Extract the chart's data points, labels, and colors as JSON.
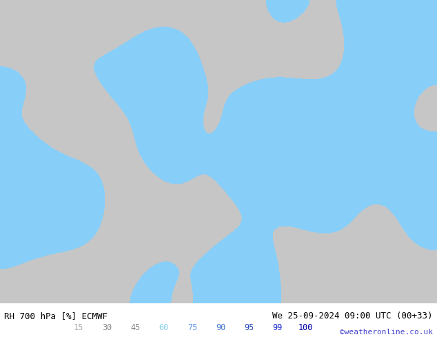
{
  "title_left": "RH 700 hPa [%] ECMWF",
  "title_right": "We 25-09-2024 09:00 UTC (00+33)",
  "credit": "©weatheronline.co.uk",
  "legend_values": [
    "15",
    "30",
    "45",
    "60",
    "75",
    "90",
    "95",
    "99",
    "100"
  ],
  "legend_colors": [
    "#d3d3d3",
    "#b0b0b0",
    "#c8c8c8",
    "#87ceeb",
    "#6db6f5",
    "#4488cc",
    "#2255aa",
    "#0033cc",
    "#0000aa"
  ],
  "bg_color": "#a0c8a0",
  "fig_width": 6.34,
  "fig_height": 4.9,
  "dpi": 100,
  "bottom_bar_color": "#ffffff",
  "title_color": "#000000",
  "credit_color": "#4444cc",
  "legend_label_colors": [
    "#b0b0b0",
    "#909090",
    "#909090",
    "#87ceeb",
    "#6db6ff",
    "#4488cc",
    "#2244bb",
    "#0022cc",
    "#0000aa"
  ]
}
